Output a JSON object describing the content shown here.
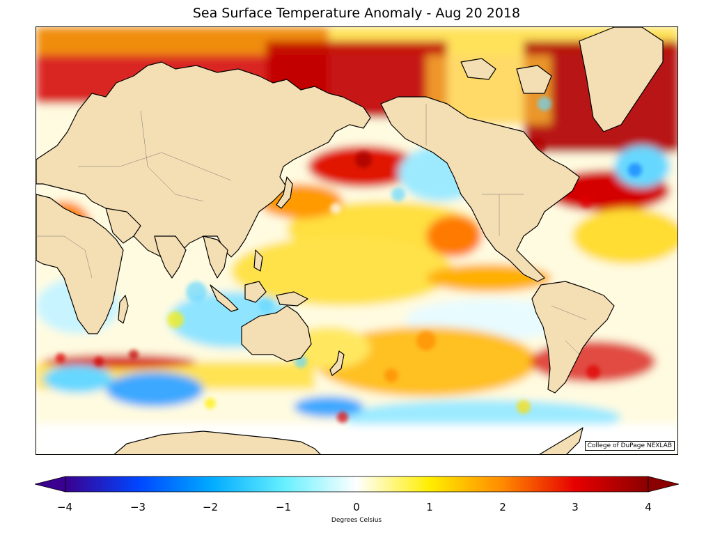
{
  "title": "Sea Surface Temperature Anomaly - Aug 20 2018",
  "credit": "College of DuPage NEXLAB",
  "colorbar": {
    "label": "Degrees Celsius",
    "min": -4,
    "max": 4,
    "ticks": [
      "−4",
      "−3",
      "−2",
      "−1",
      "0",
      "1",
      "2",
      "3",
      "4"
    ],
    "colors": [
      "#3a0090",
      "#0046ff",
      "#00aaff",
      "#66f0ff",
      "#ffffff",
      "#ffee00",
      "#ff8a00",
      "#e60000",
      "#8b0000"
    ]
  },
  "legend_colors": {
    "land": "#f4deb3",
    "coast": "#000000",
    "warm": "#d40000",
    "cool": "#3cc8ff"
  }
}
